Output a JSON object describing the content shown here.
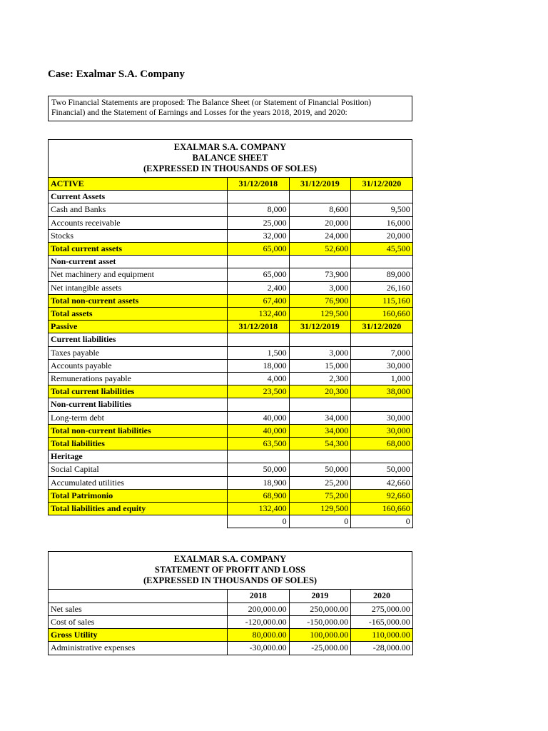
{
  "page": {
    "title": "Case: Exalmar S.A. Company",
    "intro_lines": [
      "Two Financial Statements are proposed: The Balance Sheet (or Statement of Financial Position)",
      "Financial) and the Statement of Earnings and Losses for the years 2018, 2019, and 2020:"
    ]
  },
  "colors": {
    "highlight": "#ffff00",
    "border": "#000000",
    "background": "#ffffff"
  },
  "balance_sheet": {
    "title_lines": [
      "EXALMAR S.A. COMPANY",
      "BALANCE SHEET",
      "(EXPRESSED IN THOUSANDS OF SOLES)"
    ],
    "rows": [
      {
        "type": "colhead",
        "label": "ACTIVE",
        "values": [
          "31/12/2018",
          "31/12/2019",
          "31/12/2020"
        ]
      },
      {
        "type": "section",
        "label": "Current Assets",
        "values": []
      },
      {
        "type": "normal",
        "label": "Cash and Banks",
        "values": [
          "8,000",
          "8,600",
          "9,500"
        ]
      },
      {
        "type": "normal",
        "label": "Accounts receivable",
        "values": [
          "25,000",
          "20,000",
          "16,000"
        ]
      },
      {
        "type": "normal",
        "label": "Stocks",
        "values": [
          "32,000",
          "24,000",
          "20,000"
        ]
      },
      {
        "type": "total",
        "label": "Total current assets",
        "values": [
          "65,000",
          "52,600",
          "45,500"
        ]
      },
      {
        "type": "section",
        "label": "Non-current asset",
        "values": []
      },
      {
        "type": "normal",
        "label": "Net machinery and equipment",
        "values": [
          "65,000",
          "73,900",
          "89,000"
        ]
      },
      {
        "type": "normal",
        "label": "Net intangible assets",
        "values": [
          "2,400",
          "3,000",
          "26,160"
        ]
      },
      {
        "type": "total",
        "label": "Total non-current assets",
        "values": [
          "67,400",
          "76,900",
          "115,160"
        ]
      },
      {
        "type": "total",
        "label": "Total assets",
        "values": [
          "132,400",
          "129,500",
          "160,660"
        ]
      },
      {
        "type": "colhead",
        "label": "Passive",
        "values": [
          "31/12/2018",
          "31/12/2019",
          "31/12/2020"
        ]
      },
      {
        "type": "section",
        "label": "Current liabilities",
        "values": []
      },
      {
        "type": "normal",
        "label": "Taxes payable",
        "values": [
          "1,500",
          "3,000",
          "7,000"
        ]
      },
      {
        "type": "normal",
        "label": "Accounts payable",
        "values": [
          "18,000",
          "15,000",
          "30,000"
        ]
      },
      {
        "type": "normal",
        "label": "Remunerations payable",
        "values": [
          "4,000",
          "2,300",
          "1,000"
        ]
      },
      {
        "type": "total",
        "label": "Total current liabilities",
        "values": [
          "23,500",
          "20,300",
          "38,000"
        ]
      },
      {
        "type": "section",
        "label": "Non-current liabilities",
        "values": []
      },
      {
        "type": "normal",
        "label": "Long-term debt",
        "values": [
          "40,000",
          "34,000",
          "30,000"
        ]
      },
      {
        "type": "total",
        "label": "Total non-current liabilities",
        "values": [
          "40,000",
          "34,000",
          "30,000"
        ]
      },
      {
        "type": "total",
        "label": "Total liabilities",
        "values": [
          "63,500",
          "54,300",
          "68,000"
        ]
      },
      {
        "type": "section",
        "label": "Heritage",
        "values": []
      },
      {
        "type": "normal",
        "label": "Social Capital",
        "values": [
          "50,000",
          "50,000",
          "50,000"
        ]
      },
      {
        "type": "normal",
        "label": "Accumulated utilities",
        "values": [
          "18,900",
          "25,200",
          "42,660"
        ]
      },
      {
        "type": "total",
        "label": "Total Patrimonio",
        "values": [
          "68,900",
          "75,200",
          "92,660"
        ]
      },
      {
        "type": "total",
        "label": "Total liabilities and equity",
        "values": [
          "132,400",
          "129,500",
          "160,660"
        ]
      },
      {
        "type": "zeros",
        "label": "",
        "values": [
          "0",
          "0",
          "0"
        ]
      }
    ]
  },
  "profit_loss": {
    "title_lines": [
      "EXALMAR S.A. COMPANY",
      "STATEMENT OF PROFIT AND LOSS",
      "(EXPRESSED IN THOUSANDS OF SOLES)"
    ],
    "rows": [
      {
        "type": "yearhead",
        "label": "",
        "values": [
          "2018",
          "2019",
          "2020"
        ]
      },
      {
        "type": "normal",
        "label": "Net sales",
        "values": [
          "200,000.00",
          "250,000.00",
          "275,000.00"
        ]
      },
      {
        "type": "normal",
        "label": "Cost of sales",
        "values": [
          "-120,000.00",
          "-150,000.00",
          "-165,000.00"
        ]
      },
      {
        "type": "total",
        "label": "Gross Utility",
        "values": [
          "80,000.00",
          "100,000.00",
          "110,000.00"
        ]
      },
      {
        "type": "normal",
        "label": "Administrative expenses",
        "values": [
          "-30,000.00",
          "-25,000.00",
          "-28,000.00"
        ]
      }
    ]
  }
}
